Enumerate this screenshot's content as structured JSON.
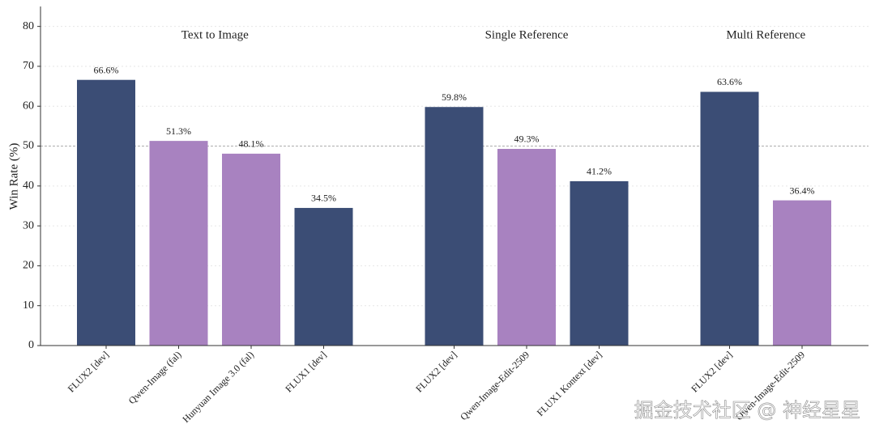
{
  "chart_data": {
    "type": "bar",
    "y_label": "Win Rate (%)",
    "ylim": [
      0,
      85
    ],
    "yticks": [
      0,
      10,
      20,
      30,
      40,
      50,
      60,
      70,
      80
    ],
    "grid": true,
    "reference_line": 50,
    "watermark": "掘金技术社区 @ 神经星星",
    "groups": [
      {
        "title": "Text to Image",
        "categories": [
          "FLUX2 [dev]",
          "Qwen-Image (fal)",
          "Hunyuan Image 3.0 (fal)",
          "FLUX1 [dev]"
        ],
        "values": [
          66.6,
          51.3,
          48.1,
          34.5
        ],
        "value_labels": [
          "66.6%",
          "51.3%",
          "48.1%",
          "34.5%"
        ],
        "colors": [
          "#3b4d75",
          "#a882c0",
          "#a882c0",
          "#3b4d75"
        ]
      },
      {
        "title": "Single Reference",
        "categories": [
          "FLUX2 [dev]",
          "Qwen-Image-Edit-2509",
          "FLUX1 Kontext [dev]"
        ],
        "values": [
          59.8,
          49.3,
          41.2
        ],
        "value_labels": [
          "59.8%",
          "49.3%",
          "41.2%"
        ],
        "colors": [
          "#3b4d75",
          "#a882c0",
          "#3b4d75"
        ]
      },
      {
        "title": "Multi Reference",
        "categories": [
          "FLUX2 [dev]",
          "Qwen-Image-Edit-2509"
        ],
        "values": [
          63.6,
          36.4
        ],
        "value_labels": [
          "63.6%",
          "36.4%"
        ],
        "colors": [
          "#3b4d75",
          "#a882c0"
        ]
      }
    ]
  }
}
